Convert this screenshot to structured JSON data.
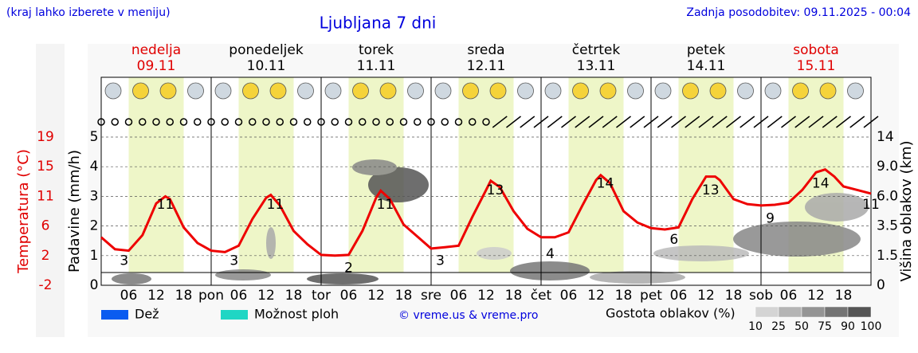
{
  "chart_data": {
    "type": "line",
    "title": "Ljubljana 7 dni",
    "note": "(kraj lahko izberete v meniju)",
    "updated": "Zadnja posodobitev: 09.11.2025 - 00:04",
    "days": [
      {
        "name": "nedelja",
        "date": "09.11",
        "color": "#e00000"
      },
      {
        "name": "ponedeljek",
        "date": "10.11",
        "color": "#000000"
      },
      {
        "name": "torek",
        "date": "11.11",
        "color": "#000000"
      },
      {
        "name": "sreda",
        "date": "12.11",
        "color": "#000000"
      },
      {
        "name": "četrtek",
        "date": "13.11",
        "color": "#000000"
      },
      {
        "name": "petek",
        "date": "14.11",
        "color": "#000000"
      },
      {
        "name": "sobota",
        "date": "15.11",
        "color": "#e00000"
      }
    ],
    "xlim": [
      0,
      168
    ],
    "xticks": [
      {
        "value": 6,
        "label": "06"
      },
      {
        "value": 12,
        "label": "12"
      },
      {
        "value": 18,
        "label": "18"
      },
      {
        "value": 24,
        "label": "pon"
      },
      {
        "value": 30,
        "label": "06"
      },
      {
        "value": 36,
        "label": "12"
      },
      {
        "value": 42,
        "label": "18"
      },
      {
        "value": 48,
        "label": "tor"
      },
      {
        "value": 54,
        "label": "06"
      },
      {
        "value": 60,
        "label": "12"
      },
      {
        "value": 66,
        "label": "18"
      },
      {
        "value": 72,
        "label": "sre"
      },
      {
        "value": 78,
        "label": "06"
      },
      {
        "value": 84,
        "label": "12"
      },
      {
        "value": 90,
        "label": "18"
      },
      {
        "value": 96,
        "label": "čet"
      },
      {
        "value": 102,
        "label": "06"
      },
      {
        "value": 108,
        "label": "12"
      },
      {
        "value": 114,
        "label": "18"
      },
      {
        "value": 120,
        "label": "pet"
      },
      {
        "value": 126,
        "label": "06"
      },
      {
        "value": 132,
        "label": "12"
      },
      {
        "value": 138,
        "label": "18"
      },
      {
        "value": 144,
        "label": "sob"
      },
      {
        "value": 150,
        "label": "06"
      },
      {
        "value": 156,
        "label": "12"
      },
      {
        "value": 162,
        "label": "18"
      }
    ],
    "ylabel": "Temperatura (°C)",
    "ylim": [
      -2,
      19
    ],
    "yticks": [
      -2,
      {
        "value": 2.2,
        "label": "2"
      },
      {
        "value": 6.4,
        "label": "6"
      },
      {
        "value": 10.6,
        "label": "11"
      },
      {
        "value": 14.8,
        "label": "15"
      },
      19
    ],
    "y2label": "Padavine (mm/h)",
    "y2lim": [
      0,
      5
    ],
    "y2ticks": [
      0,
      1,
      2,
      3,
      4,
      5
    ],
    "y3label": "Višina oblakov (km)",
    "y3ticks": [
      0,
      1.5,
      3.5,
      {
        "value": 6,
        "label": "6.0"
      },
      {
        "value": 9,
        "label": "9.0"
      },
      14
    ],
    "grid": true,
    "series": [
      {
        "color": "#ee0000",
        "x": [
          0,
          3,
          6,
          9,
          12,
          14,
          15,
          18,
          21,
          24,
          27,
          30,
          33,
          36,
          37,
          39,
          42,
          45,
          48,
          51,
          54,
          57,
          60,
          61,
          63,
          66,
          69,
          72,
          75,
          78,
          81,
          84,
          85,
          87,
          90,
          93,
          96,
          99,
          102,
          105,
          108,
          109,
          111,
          114,
          117,
          120,
          123,
          126,
          129,
          132,
          134,
          135,
          138,
          141,
          144,
          147,
          150,
          153,
          156,
          158,
          160,
          162,
          165,
          168
        ],
        "values": [
          4.8,
          3.1,
          2.9,
          5.1,
          9.6,
          10.6,
          10.2,
          6.2,
          4.0,
          2.9,
          2.7,
          3.6,
          7.4,
          10.4,
          10.8,
          9.3,
          5.7,
          3.8,
          2.3,
          2.2,
          2.3,
          5.7,
          10.4,
          11.4,
          10.2,
          6.6,
          4.9,
          3.2,
          3.4,
          3.6,
          7.7,
          11.5,
          12.8,
          11.9,
          8.5,
          6.0,
          4.8,
          4.8,
          5.5,
          9.3,
          12.9,
          13.6,
          12.5,
          8.5,
          6.9,
          6.1,
          5.9,
          6.2,
          10.2,
          13.4,
          13.4,
          12.9,
          10.2,
          9.5,
          9.3,
          9.4,
          9.7,
          11.5,
          14.0,
          14.4,
          13.4,
          12.0,
          11.5,
          11.0
        ]
      }
    ],
    "extremes": {
      "x": [
        5,
        14,
        29,
        38,
        54,
        62,
        74,
        86,
        98,
        110,
        125,
        133,
        146,
        157,
        168
      ],
      "values": [
        3,
        11,
        3,
        11,
        2,
        11,
        3,
        13,
        4,
        14,
        6,
        13,
        9,
        14,
        11
      ]
    },
    "legend": [
      {
        "name": "Dež",
        "color": "#0a5cf0"
      },
      {
        "name": "Možnost ploh",
        "color": "#1fd6c4"
      }
    ],
    "credit": "© vreme.us & vreme.pro",
    "density_title": "Gostota oblakov (%)",
    "density_ticks": [
      10,
      25,
      50,
      75,
      90,
      100
    ],
    "density_colors": [
      "#d4d4d4",
      "#b4b4b4",
      "#949494",
      "#747474",
      "#555555"
    ]
  }
}
